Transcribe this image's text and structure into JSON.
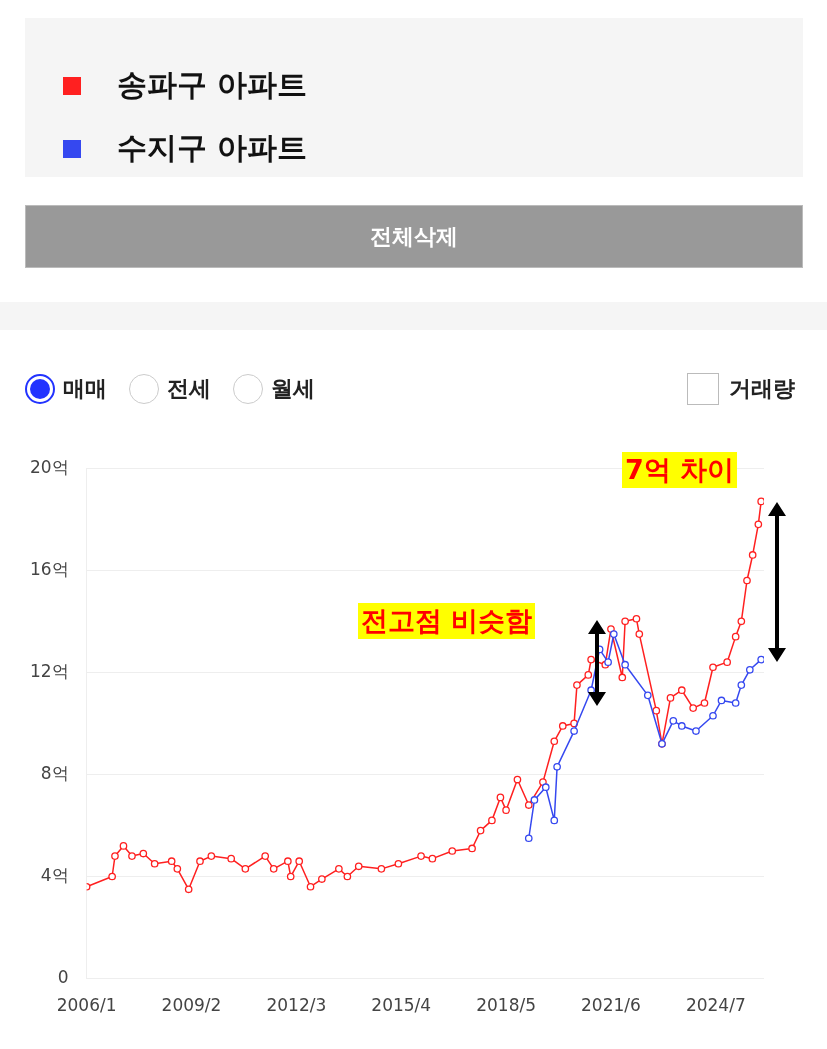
{
  "chart_data": {
    "type": "line",
    "legend": "top",
    "grid": "y",
    "marker": "circle",
    "line_style": "solid",
    "xlim": [
      "2006-01",
      "2025-12"
    ],
    "xticks": [
      {
        "value": "2006-01",
        "label": "2006/1"
      },
      {
        "value": "2009-02",
        "label": "2009/2"
      },
      {
        "value": "2012-03",
        "label": "2012/3"
      },
      {
        "value": "2015-04",
        "label": "2015/4"
      },
      {
        "value": "2018-05",
        "label": "2018/5"
      },
      {
        "value": "2021-06",
        "label": "2021/6"
      },
      {
        "value": "2024-07",
        "label": "2024/7"
      }
    ],
    "ylim": [
      0,
      20
    ],
    "yticks": [
      0,
      {
        "value": 4,
        "label": "4억"
      },
      {
        "value": 8,
        "label": "8억"
      },
      {
        "value": 12,
        "label": "12억"
      },
      {
        "value": 16,
        "label": "16억"
      },
      {
        "value": 20,
        "label": "20억"
      }
    ],
    "annotations": [
      "전고점 비슷함",
      "7억 차이",
      "전체삭제",
      "매매",
      "전세",
      "월세",
      "거래량"
    ],
    "series": [
      {
        "name": "송파구 아파트",
        "color": "#ff2020",
        "x": [
          "2006-01",
          "2006-10",
          "2006-11",
          "2007-02",
          "2007-05",
          "2007-09",
          "2008-01",
          "2008-07",
          "2008-09",
          "2009-01",
          "2009-05",
          "2009-09",
          "2010-04",
          "2010-09",
          "2011-04",
          "2011-07",
          "2011-12",
          "2012-01",
          "2012-04",
          "2012-08",
          "2012-12",
          "2013-06",
          "2013-09",
          "2014-01",
          "2014-09",
          "2015-03",
          "2015-11",
          "2016-03",
          "2016-10",
          "2017-05",
          "2017-08",
          "2017-12",
          "2018-03",
          "2018-05",
          "2018-09",
          "2019-01",
          "2019-06",
          "2019-10",
          "2020-01",
          "2020-05",
          "2020-06",
          "2020-10",
          "2020-11",
          "2021-04",
          "2021-06",
          "2021-10",
          "2021-11",
          "2022-03",
          "2022-04",
          "2022-10",
          "2022-12",
          "2023-03",
          "2023-07",
          "2023-11",
          "2024-03",
          "2024-06",
          "2024-11",
          "2025-02",
          "2025-04",
          "2025-06",
          "2025-08",
          "2025-10",
          "2025-11"
        ],
        "values": [
          3.6,
          4.0,
          4.8,
          5.2,
          4.8,
          4.9,
          4.5,
          4.6,
          4.3,
          3.5,
          4.6,
          4.8,
          4.7,
          4.3,
          4.8,
          4.3,
          4.6,
          4.0,
          4.6,
          3.6,
          3.9,
          4.3,
          4.0,
          4.4,
          4.3,
          4.5,
          4.8,
          4.7,
          5.0,
          5.1,
          5.8,
          6.2,
          7.1,
          6.6,
          7.8,
          6.8,
          7.7,
          9.3,
          9.9,
          10.0,
          11.5,
          11.9,
          12.5,
          12.3,
          13.7,
          11.8,
          14.0,
          14.1,
          13.5,
          10.5,
          9.2,
          11.0,
          11.3,
          10.6,
          10.8,
          12.2,
          12.4,
          13.4,
          14.0,
          15.6,
          16.6,
          17.8,
          18.7
        ]
      },
      {
        "name": "수지구 아파트",
        "color": "#3548f0",
        "x": [
          "2019-01",
          "2019-03",
          "2019-07",
          "2019-10",
          "2019-11",
          "2020-05",
          "2020-11",
          "2021-02",
          "2021-05",
          "2021-07",
          "2021-11",
          "2022-07",
          "2022-12",
          "2023-04",
          "2023-07",
          "2023-12",
          "2024-06",
          "2024-09",
          "2025-02",
          "2025-04",
          "2025-07",
          "2025-11"
        ],
        "values": [
          5.5,
          7.0,
          7.5,
          6.2,
          8.3,
          9.7,
          11.3,
          12.9,
          12.4,
          13.5,
          12.3,
          11.1,
          9.2,
          10.1,
          9.9,
          9.7,
          10.3,
          10.9,
          10.8,
          11.5,
          12.1,
          12.5
        ]
      }
    ]
  }
}
